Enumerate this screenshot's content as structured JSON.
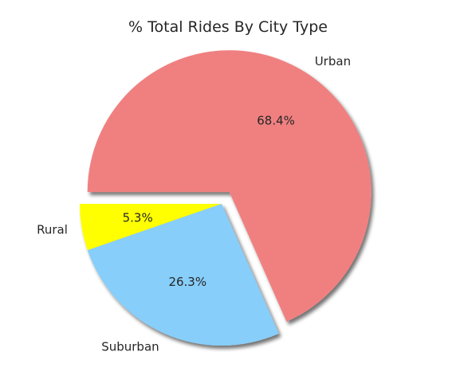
{
  "chart_data": {
    "type": "pie",
    "title": "% Total Rides By City Type",
    "slices": [
      {
        "label": "Rural",
        "value": 5.3,
        "pct_label": "5.3%",
        "color": "#FFFF00",
        "explode": false
      },
      {
        "label": "Suburban",
        "value": 26.3,
        "pct_label": "26.3%",
        "color": "#87CEFA",
        "explode": false
      },
      {
        "label": "Urban",
        "value": 68.4,
        "pct_label": "68.4%",
        "color": "#F08080",
        "explode": true
      }
    ],
    "shadow": true,
    "edge_color": "none"
  }
}
